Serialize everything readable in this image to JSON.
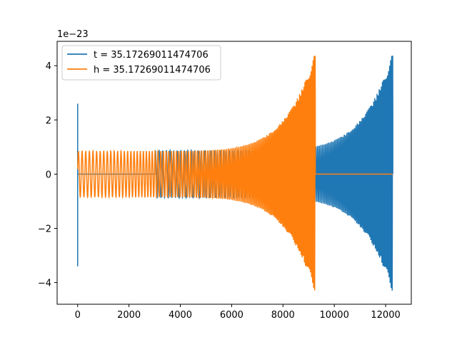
{
  "chart_data": {
    "type": "line",
    "title": "",
    "xlabel": "",
    "ylabel": "",
    "offset_text": "1e−23",
    "xlim": [
      -800,
      13000
    ],
    "ylim": [
      -4.8,
      4.9
    ],
    "x_ticks": [
      0,
      2000,
      4000,
      6000,
      8000,
      10000,
      12000
    ],
    "x_tick_labels": [
      "0",
      "2000",
      "4000",
      "6000",
      "8000",
      "10000",
      "12000"
    ],
    "y_ticks": [
      -4,
      -2,
      0,
      2,
      4
    ],
    "y_tick_labels": [
      "−4",
      "−2",
      "0",
      "2",
      "4"
    ],
    "grid": false,
    "legend_position": "upper-left",
    "series": [
      {
        "name": "t = 35.17269011474706",
        "color": "#1f77b4",
        "description_points": {
          "spike_x": 0,
          "spike_range": [
            -3.4,
            2.6
          ],
          "chirp_start_x": 3000,
          "chirp_end_x": 12280,
          "start_amplitude": 0.87,
          "end_amplitude_max": 4.5,
          "end_amplitude_min": -4.4,
          "flat_after_x": 12280
        }
      },
      {
        "name": "h = 35.17269011474706",
        "color": "#ff7f0e",
        "description_points": {
          "spike_x": 0,
          "spike_range": [
            -0.85,
            0.85
          ],
          "chirp_start_x": 0,
          "chirp_end_x": 9260,
          "start_amplitude": 0.85,
          "end_amplitude_max": 4.5,
          "end_amplitude_min": -4.4,
          "flat_from_x": 9260,
          "flat_to_x": 12280
        }
      }
    ]
  }
}
